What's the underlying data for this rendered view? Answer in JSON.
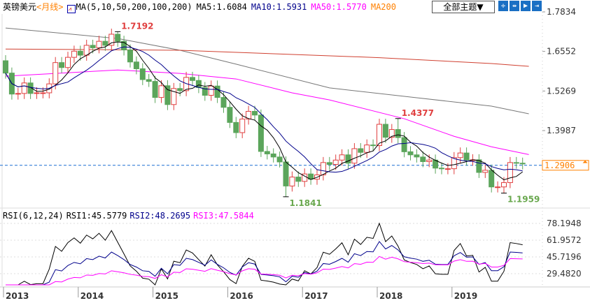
{
  "header": {
    "symbol": "英镑美元",
    "period": "<月线>",
    "ma_params": "MA(5,10,50,200,100,200)",
    "ma5": "MA5:1.6084",
    "ma10": "MA10:1.5931",
    "ma50": "MA50:1.5770",
    "ma200": "MA200",
    "theme_button": "全部主题▼"
  },
  "toolbar_icons": [
    "crosshair-icon",
    "fit-icon",
    "play-icon",
    "exit-icon"
  ],
  "rsi": {
    "params": "RSI(6,12,24)",
    "rsi1": "RSI1:45.5779",
    "rsi2": "RSI2:48.2695",
    "rsi3": "RSI3:47.5844"
  },
  "colors": {
    "up": "#e04040",
    "down": "#5ba55b",
    "ma5": "#000000",
    "ma10": "#00008b",
    "ma50": "#ff00ff",
    "ma100": "#777777",
    "ma200": "#d04030",
    "last": "#ff8000"
  },
  "chart_data": [
    {
      "type": "candlestick",
      "title": "",
      "period": "monthly",
      "start": "2013-01",
      "first_open": 1.625,
      "closes": [
        1.585,
        1.517,
        1.519,
        1.553,
        1.519,
        1.521,
        1.521,
        1.55,
        1.619,
        1.603,
        1.636,
        1.656,
        1.643,
        1.675,
        1.667,
        1.688,
        1.675,
        1.711,
        1.688,
        1.66,
        1.621,
        1.599,
        1.564,
        1.558,
        1.506,
        1.544,
        1.483,
        1.535,
        1.528,
        1.571,
        1.561,
        1.538,
        1.513,
        1.543,
        1.506,
        1.474,
        1.425,
        1.392,
        1.436,
        1.461,
        1.449,
        1.331,
        1.323,
        1.313,
        1.297,
        1.219,
        1.248,
        1.234,
        1.258,
        1.241,
        1.255,
        1.295,
        1.289,
        1.303,
        1.32,
        1.293,
        1.34,
        1.328,
        1.352,
        1.35,
        1.419,
        1.377,
        1.402,
        1.376,
        1.33,
        1.32,
        1.313,
        1.298,
        1.303,
        1.277,
        1.275,
        1.275,
        1.311,
        1.326,
        1.303,
        1.304,
        1.263,
        1.27,
        1.216,
        1.216,
        1.23,
        1.295,
        1.293,
        1.2906
      ],
      "yaxis_ticks": [
        "1.7834",
        "1.6552",
        "1.5269",
        "1.3987"
      ],
      "ylim": [
        1.17,
        1.7834
      ],
      "last_price": "1.2906",
      "annotations": [
        {
          "month_index": 18,
          "value": 1.7192,
          "label": "1.7192",
          "color": "#e04040"
        },
        {
          "month_index": 45,
          "value": 1.1841,
          "label": "1.1841",
          "color": "#6aa84f",
          "low": true
        },
        {
          "month_index": 63,
          "value": 1.4377,
          "label": "1.4377",
          "color": "#e04040"
        },
        {
          "month_index": 80,
          "value": 1.1959,
          "label": "1.1959",
          "color": "#6aa84f",
          "low": true
        }
      ],
      "long_ma": [
        {
          "name": "MA50",
          "color": "#ff00ff",
          "points": [
            [
              0,
              1.575
            ],
            [
              18,
              1.595
            ],
            [
              28,
              1.584
            ],
            [
              37,
              1.566
            ],
            [
              46,
              1.521
            ],
            [
              52,
              1.498
            ],
            [
              64,
              1.437
            ],
            [
              72,
              1.38
            ],
            [
              78,
              1.346
            ],
            [
              84,
              1.321
            ]
          ]
        },
        {
          "name": "MA100",
          "color": "#777777",
          "points": [
            [
              0,
              1.731
            ],
            [
              18,
              1.697
            ],
            [
              28,
              1.659
            ],
            [
              37,
              1.614
            ],
            [
              52,
              1.537
            ],
            [
              66,
              1.505
            ],
            [
              78,
              1.478
            ],
            [
              84,
              1.453
            ]
          ]
        },
        {
          "name": "MA200",
          "color": "#d04030",
          "points": [
            [
              0,
              1.663
            ],
            [
              28,
              1.659
            ],
            [
              60,
              1.635
            ],
            [
              78,
              1.616
            ],
            [
              84,
              1.607
            ]
          ]
        }
      ]
    },
    {
      "type": "line",
      "title": "RSI",
      "yaxis_ticks": [
        "78.1948",
        "61.9572",
        "45.7196",
        "29.4820"
      ],
      "ylim": [
        20,
        85
      ],
      "periods": [
        6,
        12,
        24
      ]
    }
  ],
  "xaxis": {
    "ticks": [
      "2013",
      "2014",
      "2015",
      "2016",
      "2017",
      "2018",
      "2019"
    ]
  }
}
